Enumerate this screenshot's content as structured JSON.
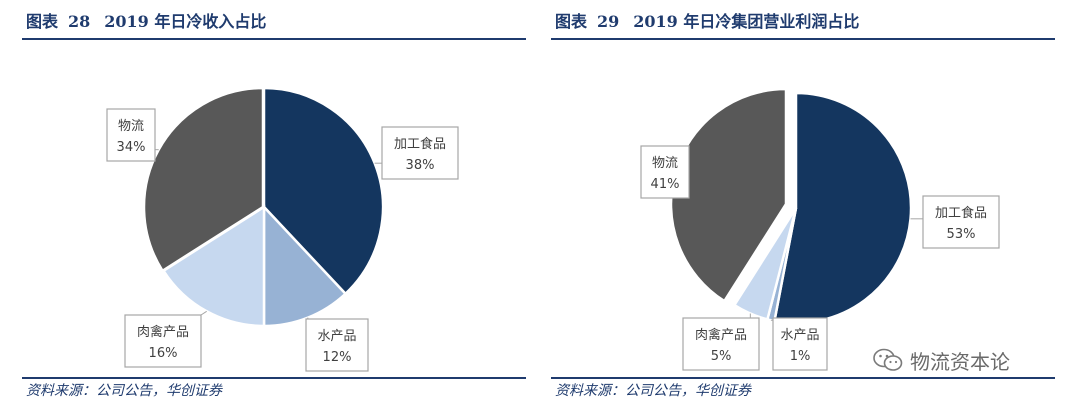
{
  "chart_data": [
    {
      "type": "pie",
      "figure_label": "图表",
      "figure_number": "28",
      "title": "2019 年日冷收入占比",
      "source": "资料来源：公司公告，华创证券",
      "slices": [
        {
          "label": "加工食品",
          "value": 38,
          "value_text": "38%",
          "color": "#14365f"
        },
        {
          "label": "水产品",
          "value": 12,
          "value_text": "12%",
          "color": "#97b2d4"
        },
        {
          "label": "肉禽产品",
          "value": 16,
          "value_text": "16%",
          "color": "#c6d8ef"
        },
        {
          "label": "物流",
          "value": 34,
          "value_text": "34%",
          "color": "#585858"
        }
      ]
    },
    {
      "type": "pie",
      "figure_label": "图表",
      "figure_number": "29",
      "title": "2019 年日冷集团营业利润占比",
      "source": "资料来源：公司公告，华创证券",
      "slices": [
        {
          "label": "加工食品",
          "value": 53,
          "value_text": "53%",
          "color": "#14365f"
        },
        {
          "label": "水产品",
          "value": 1,
          "value_text": "1%",
          "color": "#97b2d4"
        },
        {
          "label": "肉禽产品",
          "value": 5,
          "value_text": "5%",
          "color": "#c6d8ef"
        },
        {
          "label": "物流",
          "value": 41,
          "value_text": "41%",
          "color": "#585858"
        }
      ]
    }
  ],
  "watermark": {
    "text": "物流资本论",
    "icon": "wechat-icon"
  }
}
